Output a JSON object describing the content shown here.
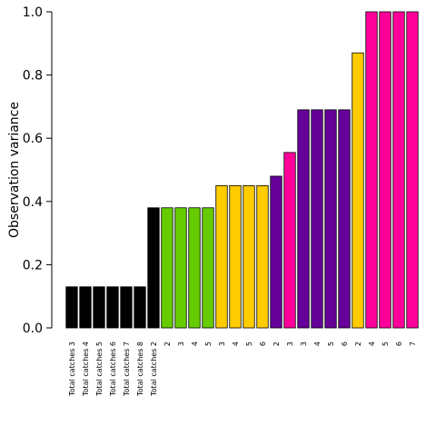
{
  "chart_data": {
    "type": "bar",
    "ylabel": "Observation variance",
    "xlabel": "",
    "ylim": [
      0,
      1.0
    ],
    "yticks": [
      "0.0",
      "0.2",
      "0.4",
      "0.6",
      "0.8",
      "1.0"
    ],
    "grid": false,
    "categories": [
      "Total catches 3",
      "Total catches 4",
      "Total catches 5",
      "Total catches 6",
      "Total catches 7",
      "Total catches 8",
      "Total catches 2",
      "2",
      "3",
      "4",
      "5",
      "3",
      "4",
      "5",
      "6",
      "2",
      "3",
      "3",
      "4",
      "5",
      "6",
      "2",
      "4",
      "5",
      "6",
      "7"
    ],
    "values": [
      0.13,
      0.13,
      0.13,
      0.13,
      0.13,
      0.13,
      0.38,
      0.38,
      0.38,
      0.38,
      0.38,
      0.45,
      0.45,
      0.45,
      0.45,
      0.48,
      0.555,
      0.69,
      0.69,
      0.69,
      0.69,
      0.87,
      1.0,
      1.0,
      1.0,
      1.0
    ],
    "colors": [
      "#000000",
      "#000000",
      "#000000",
      "#000000",
      "#000000",
      "#000000",
      "#000000",
      "#66cc00",
      "#66cc00",
      "#66cc00",
      "#66cc00",
      "#ffcc00",
      "#ffcc00",
      "#ffcc00",
      "#ffcc00",
      "#660099",
      "#ff0099",
      "#660099",
      "#660099",
      "#660099",
      "#660099",
      "#ffcc00",
      "#ff0099",
      "#ff0099",
      "#ff0099",
      "#ff0099"
    ]
  }
}
